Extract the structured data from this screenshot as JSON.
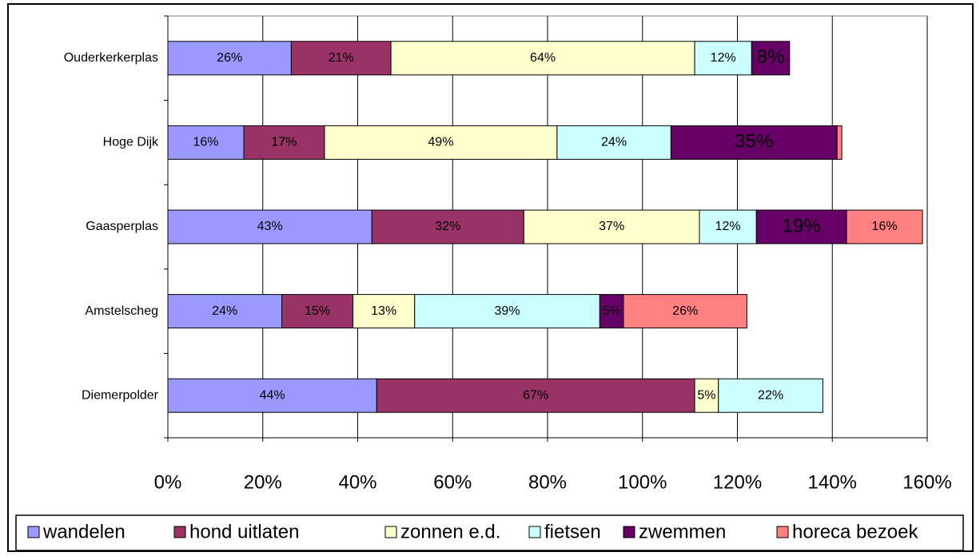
{
  "chart_data": {
    "type": "stacked_barh",
    "categories": [
      "Ouderkerkerplas",
      "Hoge Dijk",
      "Gaasperplas",
      "Amstelscheg",
      "Diemerpolder"
    ],
    "series": [
      {
        "name": "wandelen",
        "color": "#9999ff",
        "values": [
          26,
          16,
          43,
          24,
          44
        ],
        "value_labels": [
          "26%",
          "16%",
          "43%",
          "24%",
          "44%"
        ]
      },
      {
        "name": "hond uitlaten",
        "color": "#993366",
        "values": [
          21,
          17,
          32,
          15,
          67
        ],
        "value_labels": [
          "21%",
          "17%",
          "32%",
          "15%",
          "67%"
        ]
      },
      {
        "name": "zonnen e.d.",
        "color": "#ffffcc",
        "values": [
          64,
          49,
          37,
          13,
          5
        ],
        "value_labels": [
          "64%",
          "49%",
          "37%",
          "13%",
          "5%"
        ]
      },
      {
        "name": "fietsen",
        "color": "#ccffff",
        "values": [
          12,
          24,
          12,
          39,
          22
        ],
        "value_labels": [
          "12%",
          "24%",
          "12%",
          "39%",
          "22%"
        ]
      },
      {
        "name": "zwemmen",
        "color": "#660066",
        "values": [
          8,
          35,
          19,
          5,
          null
        ],
        "value_labels": [
          "8%",
          "35%",
          "19%",
          "5%",
          null
        ]
      },
      {
        "name": "horeca bezoek",
        "color": "#ff8080",
        "values": [
          null,
          1,
          16,
          26,
          null
        ],
        "value_labels": [
          null,
          null,
          "16%",
          "26%",
          null
        ]
      }
    ],
    "xlim": [
      0,
      160
    ],
    "xticks": [
      {
        "value": 0,
        "label": "0%"
      },
      {
        "value": 20,
        "label": "20%"
      },
      {
        "value": 40,
        "label": "40%"
      },
      {
        "value": 60,
        "label": "60%"
      },
      {
        "value": 80,
        "label": "80%"
      },
      {
        "value": 100,
        "label": "100%"
      },
      {
        "value": 120,
        "label": "120%"
      },
      {
        "value": 140,
        "label": "140%"
      },
      {
        "value": 160,
        "label": "160%"
      }
    ],
    "grid": true,
    "legend": "bottom"
  }
}
